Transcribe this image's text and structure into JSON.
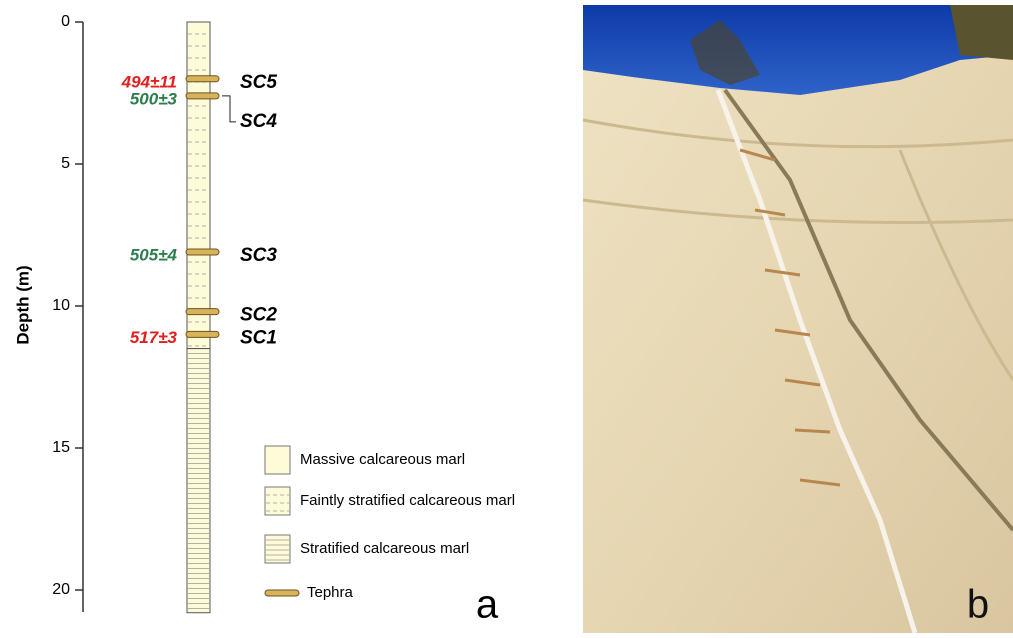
{
  "figure": {
    "panel_a": {
      "label": "a",
      "axis_label": "Depth (m)",
      "ylim": [
        0,
        20
      ],
      "yticks": [
        0,
        5,
        10,
        15,
        20
      ],
      "legend": [
        {
          "label": "Massive calcareous marl",
          "intervals": []
        },
        {
          "label": "Faintly stratified calcareous marl",
          "intervals": [
            [
              0,
              11.5
            ]
          ]
        },
        {
          "label": "Stratified calcareous marl",
          "intervals": [
            [
              11.5,
              20.8
            ]
          ]
        },
        {
          "label": "Tephra"
        }
      ],
      "samples": [
        {
          "name": "SC5",
          "depth": 2.0,
          "age": "494±11",
          "age_color": "#e0201e"
        },
        {
          "name": "SC4",
          "depth": 2.6,
          "age": "500±3",
          "age_color": "#2e7d4f"
        },
        {
          "name": "SC3",
          "depth": 8.1,
          "age": "505±4",
          "age_color": "#2e7d4f"
        },
        {
          "name": "SC2",
          "depth": 10.2
        },
        {
          "name": "SC1",
          "depth": 11.0,
          "age": "517±3",
          "age_color": "#e0201e"
        }
      ]
    },
    "panel_b": {
      "label": "b"
    }
  }
}
